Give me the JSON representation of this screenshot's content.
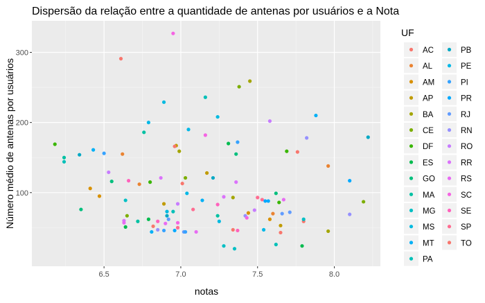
{
  "chart_data": {
    "type": "scatter",
    "title": "Dispersão da relação entre a quantidade de antenas por usuários e a Nota",
    "xlabel": "notas",
    "ylabel": "Número médio de antenas por usuários",
    "xlim": [
      6.03,
      8.3
    ],
    "ylim": [
      -5,
      345
    ],
    "x_ticks": [
      "6.5",
      "7.0",
      "7.5",
      "8.0"
    ],
    "x_tick_values": [
      6.5,
      7.0,
      7.5,
      8.0
    ],
    "y_ticks": [
      "100",
      "200",
      "300"
    ],
    "y_tick_values": [
      100,
      200,
      300
    ],
    "grid": true,
    "legend_title": "UF",
    "legend_position": "right",
    "panel_background": "#ebebeb",
    "series": [
      {
        "name": "AC",
        "color": "#F8766D",
        "points": [
          [
            6.61,
            291
          ],
          [
            7.8,
            59
          ]
        ]
      },
      {
        "name": "AL",
        "color": "#EA8331",
        "points": [
          [
            6.62,
            155
          ],
          [
            7.96,
            138
          ]
        ]
      },
      {
        "name": "AM",
        "color": "#D89000",
        "points": [
          [
            6.47,
            95
          ],
          [
            7.44,
            71
          ]
        ]
      },
      {
        "name": "AP",
        "color": "#C09B00",
        "points": [
          [
            6.97,
            167
          ],
          [
            7.17,
            128
          ]
        ]
      },
      {
        "name": "BA",
        "color": "#A3A500",
        "points": [
          [
            7.45,
            259
          ],
          [
            7.96,
            45
          ]
        ]
      },
      {
        "name": "CE",
        "color": "#7CAE00",
        "points": [
          [
            7.38,
            251
          ],
          [
            8.19,
            87
          ]
        ]
      },
      {
        "name": "DF",
        "color": "#39B600",
        "points": [
          [
            6.18,
            169
          ],
          [
            7.69,
            159
          ]
        ]
      },
      {
        "name": "ES",
        "color": "#00BB4E",
        "points": [
          [
            6.64,
            51
          ],
          [
            7.79,
            24
          ]
        ]
      },
      {
        "name": "GO",
        "color": "#00BF7D",
        "points": [
          [
            6.55,
            116
          ],
          [
            7.36,
            155
          ]
        ]
      },
      {
        "name": "MA",
        "color": "#00C1A3",
        "points": [
          [
            6.24,
            150
          ],
          [
            6.76,
            186
          ]
        ]
      },
      {
        "name": "MG",
        "color": "#00BFC4",
        "points": [
          [
            7.35,
            20
          ],
          [
            7.8,
            62
          ]
        ]
      },
      {
        "name": "MS",
        "color": "#00BAE0",
        "points": [
          [
            6.89,
            229
          ],
          [
            7.24,
            208
          ]
        ]
      },
      {
        "name": "MT",
        "color": "#00B0F6",
        "points": [
          [
            6.43,
            161
          ],
          [
            7.88,
            210
          ]
        ]
      },
      {
        "name": "PA",
        "color": "#00C0B8",
        "points": [
          [
            6.24,
            144
          ],
          [
            7.16,
            236
          ]
        ]
      },
      {
        "name": "PB",
        "color": "#00A8C4",
        "points": [
          [
            6.34,
            154
          ],
          [
            8.22,
            179
          ]
        ]
      },
      {
        "name": "PE",
        "color": "#00B8E7",
        "points": [
          [
            6.79,
            200
          ],
          [
            7.05,
            190
          ]
        ]
      },
      {
        "name": "PI",
        "color": "#35A2FF",
        "points": [
          [
            6.5,
            156
          ],
          [
            7.37,
            172
          ]
        ]
      },
      {
        "name": "PR",
        "color": "#00A9FF",
        "points": [
          [
            7.55,
            88
          ],
          [
            8.1,
            117
          ]
        ]
      },
      {
        "name": "RJ",
        "color": "#619CFF",
        "points": [
          [
            7.02,
            44
          ],
          [
            7.66,
            70
          ]
        ]
      },
      {
        "name": "RN",
        "color": "#9590FF",
        "points": [
          [
            7.82,
            178
          ],
          [
            8.1,
            69
          ]
        ]
      },
      {
        "name": "RO",
        "color": "#C77CFF",
        "points": [
          [
            6.53,
            129
          ],
          [
            7.58,
            202
          ]
        ]
      },
      {
        "name": "RR",
        "color": "#DB72FB",
        "points": [
          [
            6.63,
            60
          ],
          [
            7.36,
            115
          ]
        ]
      },
      {
        "name": "RS",
        "color": "#E76BF3",
        "points": [
          [
            6.9,
            56
          ],
          [
            7.67,
            90
          ]
        ]
      },
      {
        "name": "SC",
        "color": "#F564E3",
        "points": [
          [
            6.95,
            327
          ],
          [
            7.16,
            182
          ]
        ]
      },
      {
        "name": "SE",
        "color": "#FF62BC",
        "points": [
          [
            6.66,
            117
          ],
          [
            7.37,
            46
          ]
        ]
      },
      {
        "name": "SP",
        "color": "#FF6C91",
        "points": [
          [
            6.98,
            50
          ],
          [
            7.5,
            93
          ]
        ]
      },
      {
        "name": "TO",
        "color": "#F8766D",
        "points": [
          [
            6.96,
            166
          ],
          [
            7.76,
            158
          ]
        ]
      }
    ],
    "extra_points": [
      {
        "uf": "AC",
        "color": "#F8766D",
        "points": [
          [
            7.01,
            113
          ],
          [
            7.34,
            47
          ]
        ]
      },
      {
        "uf": "AL",
        "color": "#EA8331",
        "points": [
          [
            6.73,
            112
          ],
          [
            7.6,
            70
          ]
        ]
      },
      {
        "uf": "AM",
        "color": "#D89000",
        "points": [
          [
            6.41,
            106
          ],
          [
            7.58,
            62
          ]
        ]
      },
      {
        "uf": "AP",
        "color": "#C09B00",
        "points": [
          [
            6.89,
            84
          ],
          [
            7.65,
            53
          ]
        ]
      },
      {
        "uf": "BA",
        "color": "#A3A500",
        "points": [
          [
            6.99,
            159
          ],
          [
            7.34,
            93
          ]
        ]
      },
      {
        "uf": "CE",
        "color": "#7CAE00",
        "points": [
          [
            6.65,
            67
          ],
          [
            7.03,
            121
          ]
        ]
      },
      {
        "uf": "DF",
        "color": "#39B600",
        "points": [
          [
            6.8,
            115
          ],
          [
            7.64,
            86
          ]
        ]
      },
      {
        "uf": "ES",
        "color": "#00BB4E",
        "points": [
          [
            6.79,
            62
          ],
          [
            7.31,
            170
          ]
        ]
      },
      {
        "uf": "GO",
        "color": "#00BF7D",
        "points": [
          [
            6.35,
            76
          ],
          [
            7.62,
            99
          ]
        ]
      },
      {
        "uf": "MA",
        "color": "#00C1A3",
        "points": [
          [
            6.72,
            59
          ],
          [
            7.24,
            67
          ]
        ]
      },
      {
        "uf": "MG",
        "color": "#00BFC4",
        "points": [
          [
            6.64,
            89
          ],
          [
            7.28,
            24
          ]
        ]
      },
      {
        "uf": "MS",
        "color": "#00BAE0",
        "points": [
          [
            6.91,
            73
          ],
          [
            7.25,
            59
          ]
        ]
      },
      {
        "uf": "MT",
        "color": "#00B0F6",
        "points": [
          [
            6.81,
            44
          ],
          [
            7.14,
            89
          ]
        ]
      },
      {
        "uf": "PA",
        "color": "#00C0B8",
        "points": [
          [
            6.95,
            73
          ],
          [
            7.62,
            26
          ]
        ]
      },
      {
        "uf": "PB",
        "color": "#00A8C4",
        "points": [
          [
            6.91,
            67
          ],
          [
            7.21,
            121
          ]
        ]
      },
      {
        "uf": "PE",
        "color": "#00B8E7",
        "points": [
          [
            7.04,
            99
          ],
          [
            7.54,
            47
          ]
        ]
      },
      {
        "uf": "PI",
        "color": "#35A2FF",
        "points": [
          [
            6.89,
            46
          ],
          [
            7.03,
            44
          ]
        ]
      },
      {
        "uf": "PR",
        "color": "#00A9FF",
        "points": [
          [
            6.96,
            46
          ],
          [
            7.57,
            88
          ]
        ]
      },
      {
        "uf": "RJ",
        "color": "#619CFF",
        "points": [
          [
            6.92,
            62
          ],
          [
            7.71,
            72
          ]
        ]
      },
      {
        "uf": "RN",
        "color": "#9590FF",
        "points": [
          [
            6.85,
            47
          ],
          [
            7.42,
            67
          ]
        ]
      },
      {
        "uf": "RO",
        "color": "#C77CFF",
        "points": [
          [
            6.98,
            84
          ],
          [
            7.48,
            75
          ]
        ]
      },
      {
        "uf": "RR",
        "color": "#DB72FB",
        "points": [
          [
            6.87,
            121
          ],
          [
            7.28,
            94
          ]
        ]
      },
      {
        "uf": "RS",
        "color": "#E76BF3",
        "points": [
          [
            6.63,
            57
          ],
          [
            7.1,
            44
          ]
        ]
      },
      {
        "uf": "SC",
        "color": "#F564E3",
        "points": [
          [
            6.98,
            57
          ],
          [
            7.43,
            64
          ]
        ]
      },
      {
        "uf": "SE",
        "color": "#FF62BC",
        "points": [
          [
            6.85,
            59
          ],
          [
            7.24,
            83
          ]
        ]
      },
      {
        "uf": "SP",
        "color": "#FF6C91",
        "points": [
          [
            7.08,
            76
          ],
          [
            7.53,
            90
          ]
        ]
      },
      {
        "uf": "TO",
        "color": "#F8766D",
        "points": [
          [
            6.82,
            52
          ],
          [
            7.65,
            43
          ]
        ]
      }
    ]
  }
}
